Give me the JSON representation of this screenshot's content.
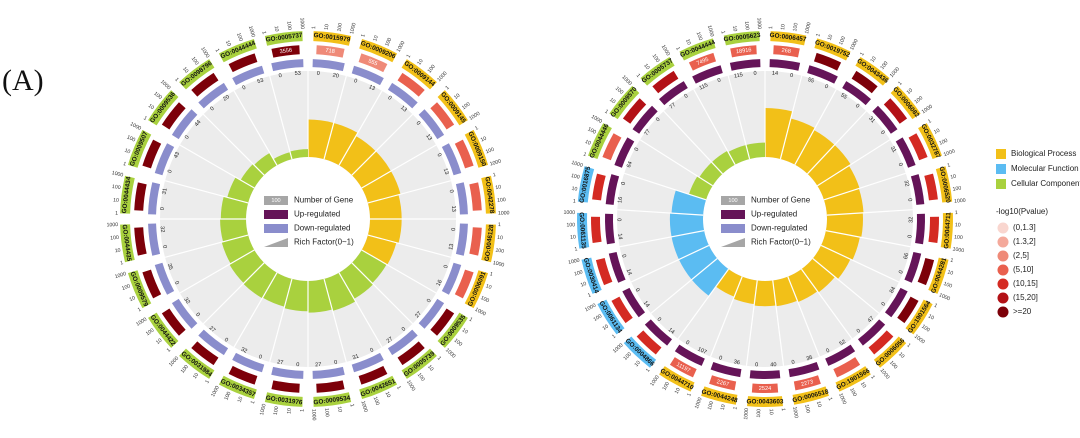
{
  "panel_label": "(A)",
  "colors": {
    "bp": "#f2c018",
    "mf": "#5bbcf2",
    "cc": "#a9d13e",
    "up": "#651458",
    "down": "#8a8dcc",
    "rich_bg": "#ececec",
    "count_bar": "#e8453a",
    "count_bar_high": "#8b0d14",
    "legend_gray": "#a6a6a6"
  },
  "chart_data": [
    {
      "type": "circos-go-enrichment",
      "title": "",
      "center_legend": [
        "Number of Gene",
        "Up-regulated",
        "Down-regulated",
        "Rich Factor(0~1)"
      ],
      "legend_sample_value": "100",
      "categories": [
        "GO:0015979",
        "GO:0009206",
        "GO:0009144",
        "GO:0009145",
        "GO:0009150",
        "GO:0042278",
        "GO:0046128",
        "GO:0006091",
        "GO:0009535",
        "GO:0005739",
        "GO:0042651",
        "GO:0009534",
        "GO:0031976",
        "GO:0034357",
        "GO:0031984",
        "GO:0044422",
        "GO:0009579",
        "GO:0044435",
        "GO:0044434",
        "GO:0009507",
        "GO:0009536",
        "GO:0098796",
        "GO:0044444",
        "GO:0005737"
      ],
      "group": [
        "bp",
        "bp",
        "bp",
        "bp",
        "bp",
        "bp",
        "bp",
        "bp",
        "cc",
        "cc",
        "cc",
        "cc",
        "cc",
        "cc",
        "cc",
        "cc",
        "cc",
        "cc",
        "cc",
        "cc",
        "cc",
        "cc",
        "cc",
        "cc"
      ],
      "gene_count": [
        718,
        555,
        "",
        "",
        "",
        "",
        "",
        "",
        "",
        "",
        "",
        "",
        "",
        "",
        "",
        "",
        "",
        "",
        "",
        "",
        "",
        "",
        "",
        3556
      ],
      "count_level": [
        2,
        2,
        3,
        3,
        3,
        3,
        3,
        3,
        6,
        6,
        6,
        6,
        6,
        6,
        6,
        6,
        6,
        6,
        6,
        6,
        6,
        6,
        6,
        6
      ],
      "up": [
        0,
        0,
        0,
        0,
        0,
        0,
        0,
        0,
        0,
        0,
        0,
        0,
        0,
        0,
        0,
        0,
        0,
        0,
        0,
        0,
        0,
        0,
        0,
        0
      ],
      "down": [
        20,
        13,
        13,
        13,
        13,
        13,
        13,
        16,
        27,
        27,
        31,
        27,
        27,
        32,
        27,
        32,
        35,
        32,
        31,
        43,
        44,
        20,
        53,
        53
      ],
      "rich_factor": [
        0.52,
        0.52,
        0.47,
        0.47,
        0.47,
        0.44,
        0.44,
        0.41,
        0.4,
        0.42,
        0.46,
        0.44,
        0.42,
        0.4,
        0.41,
        0.4,
        0.38,
        0.36,
        0.35,
        0.3,
        0.22,
        0.2,
        0.1,
        0.11
      ]
    },
    {
      "type": "circos-go-enrichment",
      "title": "",
      "center_legend": [
        "Number of Gene",
        "Up-regulated",
        "Down-regulated",
        "Rich Factor(0~1)"
      ],
      "legend_sample_value": "100",
      "categories": [
        "GO:0006457",
        "GO:0019752",
        "GO:0043436",
        "GO:0006082",
        "GO:0032787",
        "GO:0006520",
        "GO:0044711",
        "GO:0044281",
        "GO:1901564",
        "GO:0006056",
        "GO:1901566",
        "GO:0006518",
        "GO:0043603",
        "GO:0044248",
        "GO:0044710",
        "GO:0004866",
        "GO:0061134",
        "GO:0030414",
        "GO:0061135",
        "GO:0016875",
        "GO:0044446",
        "GO:0009570",
        "GO:0005737",
        "GO:0044444",
        "GO:0005623"
      ],
      "group": [
        "bp",
        "bp",
        "bp",
        "bp",
        "bp",
        "bp",
        "bp",
        "bp",
        "bp",
        "bp",
        "bp",
        "bp",
        "bp",
        "bp",
        "bp",
        "mf",
        "mf",
        "mf",
        "mf",
        "mf",
        "cc",
        "cc",
        "cc",
        "cc",
        "cc"
      ],
      "gene_count": [
        268,
        "",
        "",
        "",
        "",
        "",
        "",
        "",
        "",
        "",
        "",
        2273,
        2524,
        2267,
        11197,
        "",
        "",
        "",
        "",
        "",
        "",
        "",
        "",
        7495,
        18916
      ],
      "count_level": [
        3,
        6,
        6,
        5,
        4,
        4,
        4,
        6,
        6,
        4,
        3,
        3,
        3,
        3,
        3,
        4,
        4,
        4,
        4,
        4,
        3,
        5,
        5,
        3,
        3
      ],
      "up": [
        14,
        55,
        55,
        31,
        31,
        32,
        32,
        66,
        84,
        47,
        52,
        36,
        40,
        36,
        107,
        14,
        14,
        14,
        14,
        16,
        64,
        77,
        77,
        115,
        115
      ],
      "down": [
        0,
        0,
        0,
        0,
        0,
        0,
        0,
        0,
        0,
        0,
        0,
        0,
        0,
        0,
        0,
        0,
        0,
        0,
        0,
        0,
        0,
        0,
        0,
        0,
        0
      ],
      "rich_factor": [
        0.68,
        0.58,
        0.55,
        0.55,
        0.52,
        0.51,
        0.5,
        0.48,
        0.45,
        0.4,
        0.38,
        0.36,
        0.35,
        0.33,
        0.3,
        0.46,
        0.46,
        0.46,
        0.46,
        0.44,
        0.25,
        0.22,
        0.22,
        0.2,
        0.2
      ]
    }
  ],
  "legend": {
    "category_items": [
      {
        "label": "Biological Process",
        "key": "bp"
      },
      {
        "label": "Molecular Function",
        "key": "mf"
      },
      {
        "label": "Cellular Component",
        "key": "cc"
      }
    ],
    "pvalue_title": "-log10(Pvalue)",
    "pvalue_items": [
      {
        "label": "(0,1.3]",
        "color": "#f9d6cf"
      },
      {
        "label": "(1.3,2]",
        "color": "#f4a99b"
      },
      {
        "label": "(2,5]",
        "color": "#ef8a78"
      },
      {
        "label": "(5,10]",
        "color": "#e9604e"
      },
      {
        "label": "(10,15]",
        "color": "#d42a22"
      },
      {
        "label": "(15,20]",
        "color": "#b31116"
      },
      {
        "label": ">=20",
        "color": "#7d0009"
      }
    ]
  }
}
